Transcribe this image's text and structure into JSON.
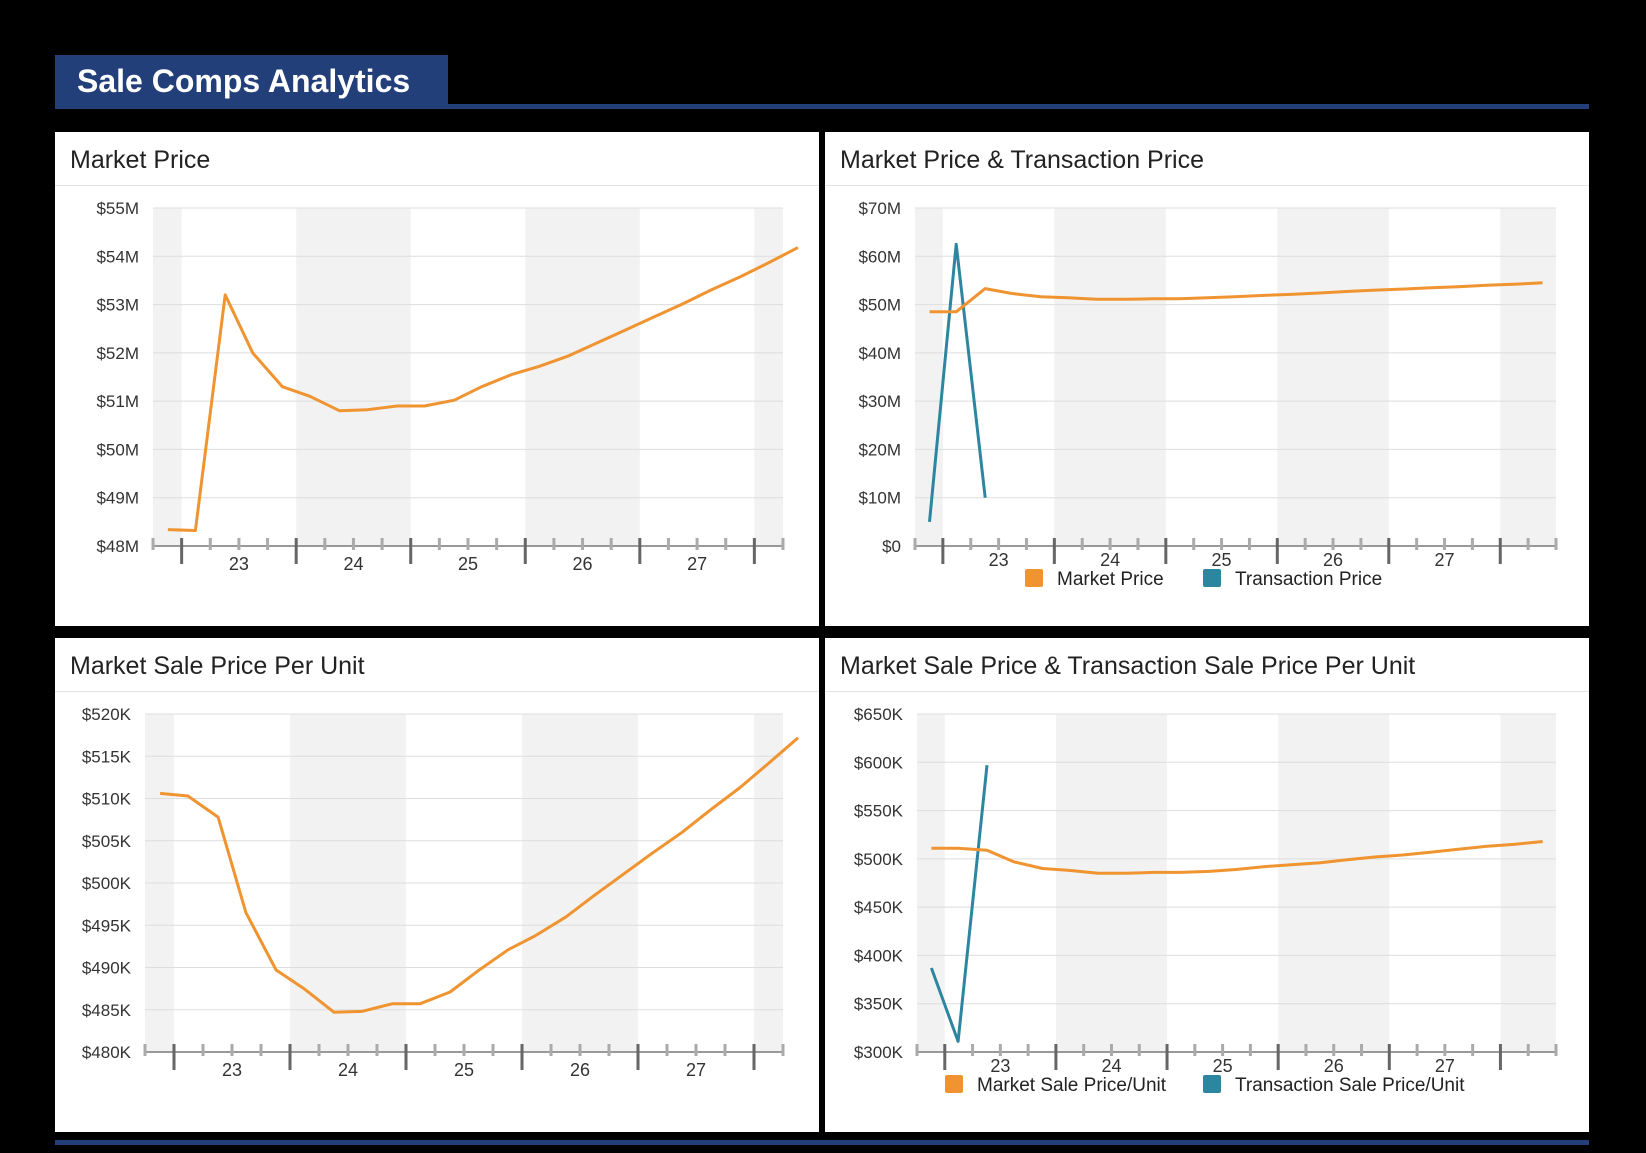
{
  "header": {
    "title": "Sale Comps Analytics"
  },
  "colors": {
    "accent": "#223f7a",
    "market": "#ef9430",
    "transaction": "#2d86a0",
    "band": "#f2f2f2",
    "grid": "#dddddd"
  },
  "chart_data": [
    {
      "type": "line",
      "title": "Market Price",
      "ylim": [
        48,
        55
      ],
      "xlim": [
        22.25,
        27.75
      ],
      "bands": [
        [
          22.25,
          22.5
        ],
        [
          23.5,
          24.5
        ],
        [
          25.5,
          26.5
        ],
        [
          27.5,
          27.75
        ]
      ],
      "y_ticks": [
        {
          "v": 55,
          "label": "$55M"
        },
        {
          "v": 54,
          "label": "$54M"
        },
        {
          "v": 53,
          "label": "$53M"
        },
        {
          "v": 52,
          "label": "$52M"
        },
        {
          "v": 51,
          "label": "$51M"
        },
        {
          "v": 50,
          "label": "$50M"
        },
        {
          "v": 49,
          "label": "$49M"
        },
        {
          "v": 48,
          "label": "$48M"
        }
      ],
      "x_ticks": [
        {
          "v": 23,
          "label": "23"
        },
        {
          "v": 24,
          "label": "24"
        },
        {
          "v": 25,
          "label": "25"
        },
        {
          "v": 26,
          "label": "26"
        },
        {
          "v": 27,
          "label": "27"
        }
      ],
      "series": [
        {
          "name": "Market Price",
          "color_key": "market",
          "points": [
            [
              22.38,
              48.34
            ],
            [
              22.62,
              48.32
            ],
            [
              22.88,
              53.2
            ],
            [
              23.12,
              52.0
            ],
            [
              23.38,
              51.3
            ],
            [
              23.62,
              51.1
            ],
            [
              23.88,
              50.8
            ],
            [
              24.12,
              50.82
            ],
            [
              24.38,
              50.9
            ],
            [
              24.62,
              50.9
            ],
            [
              24.88,
              51.02
            ],
            [
              25.12,
              51.3
            ],
            [
              25.38,
              51.55
            ],
            [
              25.62,
              51.72
            ],
            [
              25.88,
              51.94
            ],
            [
              26.12,
              52.2
            ],
            [
              26.38,
              52.48
            ],
            [
              26.62,
              52.74
            ],
            [
              26.88,
              53.02
            ],
            [
              27.12,
              53.3
            ],
            [
              27.38,
              53.58
            ],
            [
              27.62,
              53.86
            ],
            [
              27.88,
              54.18
            ]
          ]
        }
      ],
      "legend": []
    },
    {
      "type": "line",
      "title": "Market Price & Transaction Price",
      "ylim": [
        0,
        70
      ],
      "xlim": [
        22.25,
        28.0
      ],
      "bands": [
        [
          22.25,
          22.5
        ],
        [
          23.5,
          24.5
        ],
        [
          25.5,
          26.5
        ],
        [
          27.5,
          28.0
        ]
      ],
      "y_ticks": [
        {
          "v": 70,
          "label": "$70M"
        },
        {
          "v": 60,
          "label": "$60M"
        },
        {
          "v": 50,
          "label": "$50M"
        },
        {
          "v": 40,
          "label": "$40M"
        },
        {
          "v": 30,
          "label": "$30M"
        },
        {
          "v": 20,
          "label": "$20M"
        },
        {
          "v": 10,
          "label": "$10M"
        },
        {
          "v": 0,
          "label": "$0"
        }
      ],
      "x_ticks": [
        {
          "v": 23,
          "label": "23"
        },
        {
          "v": 24,
          "label": "24"
        },
        {
          "v": 25,
          "label": "25"
        },
        {
          "v": 26,
          "label": "26"
        },
        {
          "v": 27,
          "label": "27"
        }
      ],
      "series": [
        {
          "name": "Transaction Price",
          "color_key": "transaction",
          "points": [
            [
              22.38,
              5.0
            ],
            [
              22.62,
              62.5
            ],
            [
              22.88,
              10.0
            ]
          ]
        },
        {
          "name": "Market Price",
          "color_key": "market",
          "points": [
            [
              22.38,
              48.5
            ],
            [
              22.62,
              48.5
            ],
            [
              22.88,
              53.3
            ],
            [
              23.12,
              52.3
            ],
            [
              23.38,
              51.6
            ],
            [
              23.62,
              51.4
            ],
            [
              23.88,
              51.1
            ],
            [
              24.12,
              51.1
            ],
            [
              24.38,
              51.2
            ],
            [
              24.62,
              51.2
            ],
            [
              24.88,
              51.4
            ],
            [
              25.12,
              51.6
            ],
            [
              25.38,
              51.9
            ],
            [
              25.62,
              52.1
            ],
            [
              25.88,
              52.4
            ],
            [
              26.12,
              52.7
            ],
            [
              26.38,
              53.0
            ],
            [
              26.62,
              53.2
            ],
            [
              26.88,
              53.5
            ],
            [
              27.12,
              53.7
            ],
            [
              27.38,
              54.0
            ],
            [
              27.62,
              54.2
            ],
            [
              27.88,
              54.5
            ]
          ]
        }
      ],
      "legend": [
        {
          "label": "Market Price",
          "color_key": "market"
        },
        {
          "label": "Transaction Price",
          "color_key": "transaction"
        }
      ]
    },
    {
      "type": "line",
      "title": "Market Sale Price Per Unit",
      "ylim": [
        480,
        520
      ],
      "xlim": [
        22.25,
        27.75
      ],
      "bands": [
        [
          22.25,
          22.5
        ],
        [
          23.5,
          24.5
        ],
        [
          25.5,
          26.5
        ],
        [
          27.5,
          27.75
        ]
      ],
      "y_ticks": [
        {
          "v": 520,
          "label": "$520K"
        },
        {
          "v": 515,
          "label": "$515K"
        },
        {
          "v": 510,
          "label": "$510K"
        },
        {
          "v": 505,
          "label": "$505K"
        },
        {
          "v": 500,
          "label": "$500K"
        },
        {
          "v": 495,
          "label": "$495K"
        },
        {
          "v": 490,
          "label": "$490K"
        },
        {
          "v": 485,
          "label": "$485K"
        },
        {
          "v": 480,
          "label": "$480K"
        }
      ],
      "x_ticks": [
        {
          "v": 23,
          "label": "23"
        },
        {
          "v": 24,
          "label": "24"
        },
        {
          "v": 25,
          "label": "25"
        },
        {
          "v": 26,
          "label": "26"
        },
        {
          "v": 27,
          "label": "27"
        }
      ],
      "series": [
        {
          "name": "Market Sale Price Per Unit",
          "color_key": "market",
          "points": [
            [
              22.38,
              510.6
            ],
            [
              22.62,
              510.3
            ],
            [
              22.88,
              507.8
            ],
            [
              23.12,
              496.5
            ],
            [
              23.38,
              489.7
            ],
            [
              23.62,
              487.5
            ],
            [
              23.88,
              484.7
            ],
            [
              24.12,
              484.8
            ],
            [
              24.38,
              485.7
            ],
            [
              24.62,
              485.7
            ],
            [
              24.88,
              487.1
            ],
            [
              25.12,
              489.6
            ],
            [
              25.38,
              492.1
            ],
            [
              25.62,
              493.8
            ],
            [
              25.88,
              496.0
            ],
            [
              26.12,
              498.5
            ],
            [
              26.38,
              501.1
            ],
            [
              26.62,
              503.5
            ],
            [
              26.88,
              506.0
            ],
            [
              27.12,
              508.6
            ],
            [
              27.38,
              511.3
            ],
            [
              27.62,
              514.1
            ],
            [
              27.88,
              517.2
            ]
          ]
        }
      ],
      "legend": []
    },
    {
      "type": "line",
      "title": "Market Sale Price & Transaction Sale Price Per Unit",
      "ylim": [
        300,
        650
      ],
      "xlim": [
        22.25,
        28.0
      ],
      "bands": [
        [
          22.25,
          22.5
        ],
        [
          23.5,
          24.5
        ],
        [
          25.5,
          26.5
        ],
        [
          27.5,
          28.0
        ]
      ],
      "y_ticks": [
        {
          "v": 650,
          "label": "$650K"
        },
        {
          "v": 600,
          "label": "$600K"
        },
        {
          "v": 550,
          "label": "$550K"
        },
        {
          "v": 500,
          "label": "$500K"
        },
        {
          "v": 450,
          "label": "$450K"
        },
        {
          "v": 400,
          "label": "$400K"
        },
        {
          "v": 350,
          "label": "$350K"
        },
        {
          "v": 300,
          "label": "$300K"
        }
      ],
      "x_ticks": [
        {
          "v": 23,
          "label": "23"
        },
        {
          "v": 24,
          "label": "24"
        },
        {
          "v": 25,
          "label": "25"
        },
        {
          "v": 26,
          "label": "26"
        },
        {
          "v": 27,
          "label": "27"
        }
      ],
      "series": [
        {
          "name": "Transaction Sale Price/Unit",
          "color_key": "transaction",
          "points": [
            [
              22.38,
              387
            ],
            [
              22.62,
              311
            ],
            [
              22.88,
              597
            ]
          ]
        },
        {
          "name": "Market Sale Price/Unit",
          "color_key": "market",
          "points": [
            [
              22.38,
              511
            ],
            [
              22.62,
              511
            ],
            [
              22.88,
              509
            ],
            [
              23.12,
              497
            ],
            [
              23.38,
              490
            ],
            [
              23.62,
              488
            ],
            [
              23.88,
              485
            ],
            [
              24.12,
              485
            ],
            [
              24.38,
              486
            ],
            [
              24.62,
              486
            ],
            [
              24.88,
              487
            ],
            [
              25.12,
              489
            ],
            [
              25.38,
              492
            ],
            [
              25.62,
              494
            ],
            [
              25.88,
              496
            ],
            [
              26.12,
              499
            ],
            [
              26.38,
              502
            ],
            [
              26.62,
              504
            ],
            [
              26.88,
              507
            ],
            [
              27.12,
              510
            ],
            [
              27.38,
              513
            ],
            [
              27.62,
              515
            ],
            [
              27.88,
              518
            ]
          ]
        }
      ],
      "legend": [
        {
          "label": "Market Sale Price/Unit",
          "color_key": "market"
        },
        {
          "label": "Transaction Sale Price/Unit",
          "color_key": "transaction"
        }
      ]
    }
  ]
}
